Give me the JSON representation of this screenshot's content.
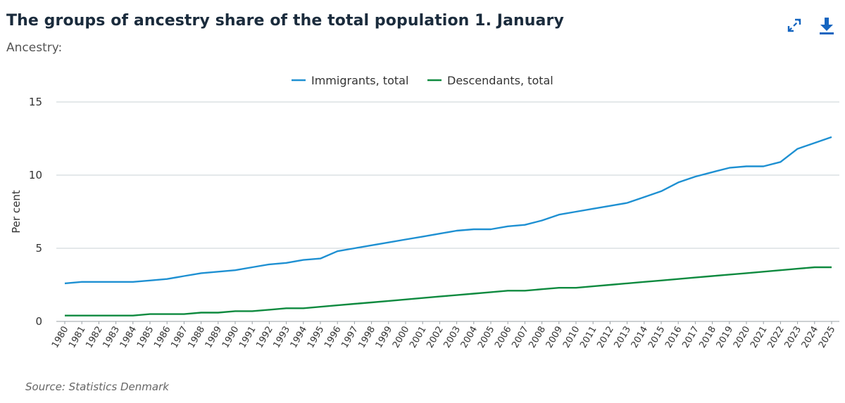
{
  "header": {
    "title": "The groups of ancestry share of the total population 1. January",
    "subtitle": "Ancestry:",
    "expand_icon": "expand-icon",
    "download_icon": "download-icon"
  },
  "footer": {
    "source": "Source: Statistics Denmark"
  },
  "chart_data": {
    "type": "line",
    "title": "The groups of ancestry share of the total population 1. January",
    "xlabel": "",
    "ylabel": "Per cent",
    "ylim": [
      0,
      15
    ],
    "yticks": [
      0,
      5,
      10,
      15
    ],
    "grid": true,
    "legend_position": "top-center",
    "x": [
      "1980",
      "1981",
      "1982",
      "1983",
      "1984",
      "1985",
      "1986",
      "1987",
      "1988",
      "1989",
      "1990",
      "1991",
      "1992",
      "1993",
      "1994",
      "1995",
      "1996",
      "1997",
      "1998",
      "1999",
      "2000",
      "2001",
      "2002",
      "2003",
      "2004",
      "2005",
      "2006",
      "2007",
      "2008",
      "2009",
      "2010",
      "2011",
      "2012",
      "2013",
      "2014",
      "2015",
      "2016",
      "2017",
      "2018",
      "2019",
      "2020",
      "2021",
      "2022",
      "2023",
      "2024",
      "2025"
    ],
    "series": [
      {
        "name": "Immigrants, total",
        "color": "#1e90d2",
        "values": [
          2.6,
          2.7,
          2.7,
          2.7,
          2.7,
          2.8,
          2.9,
          3.1,
          3.3,
          3.4,
          3.5,
          3.7,
          3.9,
          4.0,
          4.2,
          4.3,
          4.8,
          5.0,
          5.2,
          5.4,
          5.6,
          5.8,
          6.0,
          6.2,
          6.3,
          6.3,
          6.5,
          6.6,
          6.9,
          7.3,
          7.5,
          7.7,
          7.9,
          8.1,
          8.5,
          8.9,
          9.5,
          9.9,
          10.2,
          10.5,
          10.6,
          10.6,
          10.9,
          11.8,
          12.2,
          12.6
        ]
      },
      {
        "name": "Descendants, total",
        "color": "#0e8a3f",
        "values": [
          0.4,
          0.4,
          0.4,
          0.4,
          0.4,
          0.5,
          0.5,
          0.5,
          0.6,
          0.6,
          0.7,
          0.7,
          0.8,
          0.9,
          0.9,
          1.0,
          1.1,
          1.2,
          1.3,
          1.4,
          1.5,
          1.6,
          1.7,
          1.8,
          1.9,
          2.0,
          2.1,
          2.1,
          2.2,
          2.3,
          2.3,
          2.4,
          2.5,
          2.6,
          2.7,
          2.8,
          2.9,
          3.0,
          3.1,
          3.2,
          3.3,
          3.4,
          3.5,
          3.6,
          3.7,
          3.7
        ]
      }
    ]
  }
}
